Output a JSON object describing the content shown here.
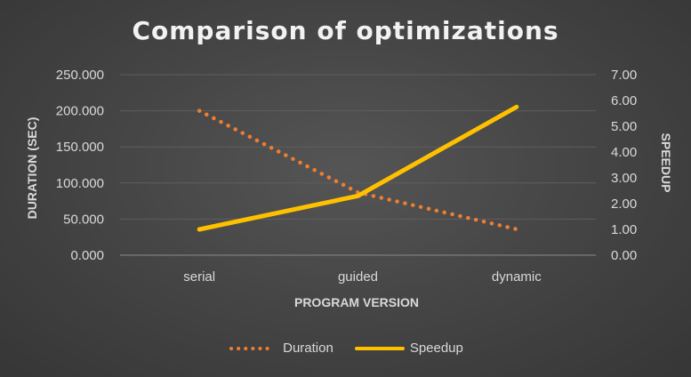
{
  "chart_data": {
    "type": "line",
    "title": "Comparison of optimizations",
    "xlabel": "PROGRAM VERSION",
    "ylabel": "DURATION (SEC)",
    "y2label": "SPEEDUP",
    "categories": [
      "serial",
      "guided",
      "dynamic"
    ],
    "ylim": [
      0,
      250
    ],
    "yticks": [
      "0.000",
      "50.000",
      "100.000",
      "150.000",
      "200.000",
      "250.000"
    ],
    "y2lim": [
      0,
      7
    ],
    "y2ticks": [
      "0.00",
      "1.00",
      "2.00",
      "3.00",
      "4.00",
      "5.00",
      "6.00",
      "7.00"
    ],
    "grid": true,
    "legend_position": "bottom",
    "series": [
      {
        "name": "Duration",
        "axis": "left",
        "style": "dotted",
        "color": "#ed7d31",
        "values": [
          200,
          87,
          36
        ]
      },
      {
        "name": "Speedup",
        "axis": "right",
        "style": "solid",
        "color": "#ffc000",
        "values": [
          1.0,
          2.3,
          5.75
        ]
      }
    ]
  }
}
